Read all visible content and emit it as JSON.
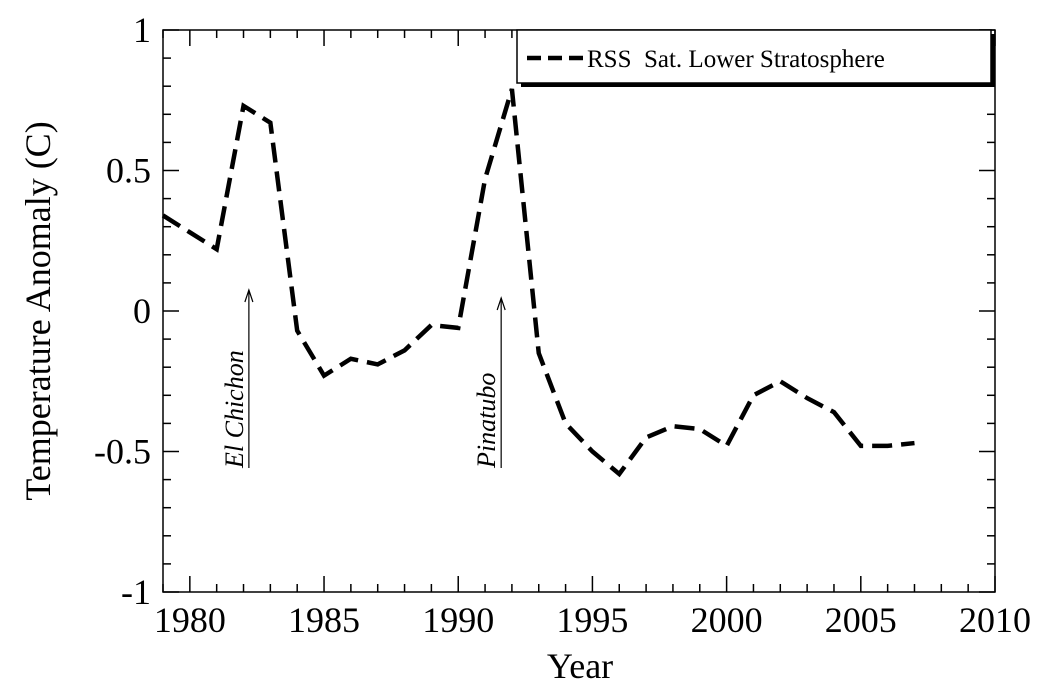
{
  "chart_data": {
    "type": "line",
    "xlabel": "Year",
    "ylabel": "Temperature Anomaly (C)",
    "x": [
      1979,
      1980,
      1981,
      1982,
      1983,
      1984,
      1985,
      1986,
      1987,
      1988,
      1989,
      1990,
      1991,
      1992,
      1993,
      1994,
      1995,
      1996,
      1997,
      1998,
      1999,
      2000,
      2001,
      2002,
      2003,
      2004,
      2005,
      2006,
      2007
    ],
    "series": [
      {
        "name": "RSS  Sat. Lower Stratosphere",
        "color": "#000000",
        "values": [
          0.34,
          0.28,
          0.22,
          0.73,
          0.67,
          -0.07,
          -0.23,
          -0.17,
          -0.19,
          -0.14,
          -0.05,
          -0.06,
          0.47,
          0.79,
          -0.15,
          -0.4,
          -0.5,
          -0.58,
          -0.45,
          -0.41,
          -0.42,
          -0.48,
          -0.3,
          -0.25,
          -0.31,
          -0.36,
          -0.48,
          -0.48,
          -0.47
        ]
      }
    ],
    "xlim": [
      1979,
      2010
    ],
    "xticks": [
      1980,
      1985,
      1990,
      1995,
      2000,
      2005,
      2010
    ],
    "ylim": [
      -1,
      1
    ],
    "yticks": [
      -1,
      -0.5,
      0,
      0.5,
      1
    ],
    "annotations": [
      "El Chichon",
      "Pinatubo"
    ],
    "legend": "upper right"
  }
}
